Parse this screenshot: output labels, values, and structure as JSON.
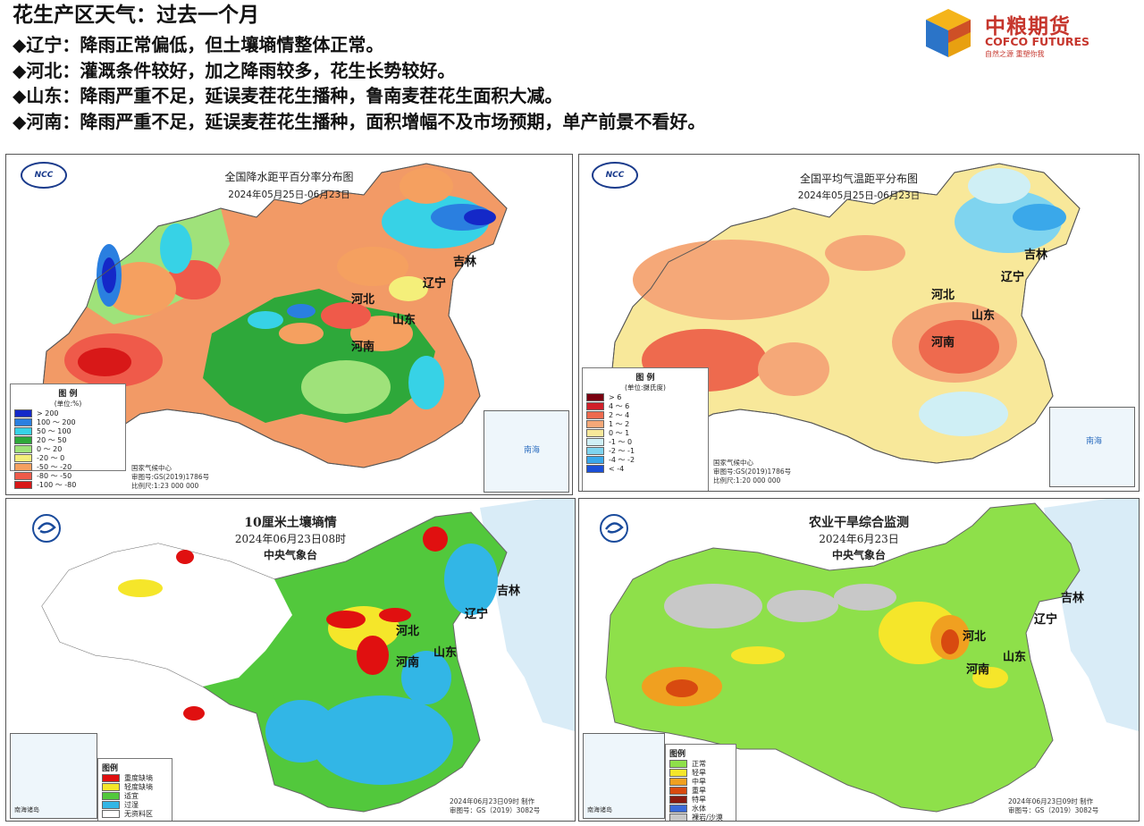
{
  "header": {
    "title": "花生产区天气：过去一个月",
    "bullets": [
      "◆辽宁：降雨正常偏低，但土壤墒情整体正常。",
      "◆河北：灌溉条件较好，加之降雨较多，花生长势较好。",
      "◆山东：降雨严重不足，延误麦茬花生播种，鲁南麦茬花生面积大减。",
      "◆河南：降雨严重不足，延误麦茬花生播种，面积增幅不及市场预期，单产前景不看好。"
    ]
  },
  "logo": {
    "cn": "中粮期货",
    "en": "COFCO FUTURES",
    "slogan": "自然之源  重塑你我",
    "brand_colors": [
      "#f4b41a",
      "#2b74c8",
      "#c6362d"
    ]
  },
  "maps": [
    {
      "id": "precip",
      "badge": "NCC",
      "title": "全国降水距平百分率分布图",
      "subtitle": "2024年05月25日-06月23日",
      "legend": {
        "title": "图 例",
        "unit": "(单位:%)",
        "items": [
          {
            "label": "> 200",
            "color": "#1428c8"
          },
          {
            "label": "100 ～ 200",
            "color": "#2a7fe0"
          },
          {
            "label": "50 ～ 100",
            "color": "#37d2e6"
          },
          {
            "label": "20 ～ 50",
            "color": "#2ea83a"
          },
          {
            "label": "0 ～ 20",
            "color": "#9fe27a"
          },
          {
            "label": "-20 ～ 0",
            "color": "#f4ef7a"
          },
          {
            "label": "-50 ～ -20",
            "color": "#f5a060"
          },
          {
            "label": "-80 ～ -50",
            "color": "#ef5a4a"
          },
          {
            "label": "-100 ～ -80",
            "color": "#d81818"
          }
        ]
      },
      "footer": [
        "国家气候中心",
        "审图号:GS(2019)1786号",
        "比例尺:1:23 000 000"
      ],
      "inset": "南海",
      "provinces": [
        "吉林",
        "辽宁",
        "河北",
        "山东",
        "河南"
      ]
    },
    {
      "id": "temp",
      "badge": "NCC",
      "title": "全国平均气温距平分布图",
      "subtitle": "2024年05月25日-06月23日",
      "legend": {
        "title": "图 例",
        "unit": "(单位:摄氏度)",
        "items": [
          {
            "label": "> 6",
            "color": "#7a0010"
          },
          {
            "label": "4 ～ 6",
            "color": "#d0202a"
          },
          {
            "label": "2 ～ 4",
            "color": "#ee6a4e"
          },
          {
            "label": "1 ～ 2",
            "color": "#f5a878"
          },
          {
            "label": "0 ～ 1",
            "color": "#f8e89a"
          },
          {
            "label": "-1 ～ 0",
            "color": "#cfeff5"
          },
          {
            "label": "-2 ～ -1",
            "color": "#7fd4ef"
          },
          {
            "label": "-4 ～ -2",
            "color": "#3aa8ea"
          },
          {
            "label": "< -4",
            "color": "#1a4fd8"
          }
        ]
      },
      "footer": [
        "国家气候中心",
        "审图号:GS(2019)1786号",
        "比例尺:1:20 000 000"
      ],
      "inset": "南海",
      "provinces": [
        "吉林",
        "辽宁",
        "河北",
        "山东",
        "河南"
      ]
    },
    {
      "id": "soil",
      "title": "10厘米土壤墒情",
      "subtitle": "2024年06月23日08时",
      "agency": "中央气象台",
      "legend": {
        "title": "图例",
        "items": [
          {
            "label": "重度缺墒",
            "color": "#e01010"
          },
          {
            "label": "轻度缺墒",
            "color": "#f5e62a"
          },
          {
            "label": "适宜",
            "color": "#52c83c"
          },
          {
            "label": "过湿",
            "color": "#32b6e6"
          },
          {
            "label": "无资料区",
            "color": "#ffffff"
          }
        ]
      },
      "footer": [
        "2024年06月23日09时 制作",
        "审图号：GS（2019）3082号"
      ],
      "inset": "南海诸岛",
      "provinces": [
        "吉林",
        "辽宁",
        "河北",
        "山东",
        "河南"
      ]
    },
    {
      "id": "drought",
      "title": "农业干旱综合监测",
      "subtitle": "2024年6月23日",
      "agency": "中央气象台",
      "legend": {
        "title": "图例",
        "items": [
          {
            "label": "正常",
            "color": "#8ee04a"
          },
          {
            "label": "轻旱",
            "color": "#f5e62a"
          },
          {
            "label": "中旱",
            "color": "#f0a020"
          },
          {
            "label": "重旱",
            "color": "#d84a10"
          },
          {
            "label": "特旱",
            "color": "#8a1a10"
          },
          {
            "label": "水体",
            "color": "#3a6ad8"
          },
          {
            "label": "裸岩/沙漠",
            "color": "#c8c8c8"
          }
        ]
      },
      "footer": [
        "2024年06月23日09时 制作",
        "审图号：GS（2019）3082号"
      ],
      "inset": "南海诸岛",
      "provinces": [
        "吉林",
        "辽宁",
        "河北",
        "山东",
        "河南"
      ]
    }
  ]
}
